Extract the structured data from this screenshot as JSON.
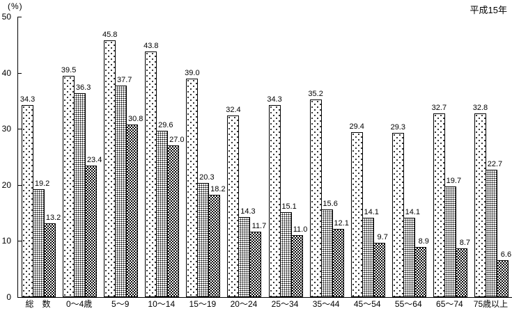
{
  "chart_data": {
    "type": "bar",
    "title": "",
    "annotation": "平成15年",
    "ylabel": "(%)",
    "xlabel": "",
    "ylim": [
      0,
      50
    ],
    "yticks": [
      0,
      10,
      20,
      30,
      40,
      50
    ],
    "grid": false,
    "legend_position": "none",
    "bar_patterns_note": [
      "sparse-dots",
      "dense-dots",
      "dark-checker"
    ],
    "categories": [
      "総　数",
      "0〜4歳",
      "5〜9",
      "10〜14",
      "15〜19",
      "20〜24",
      "25〜34",
      "35〜44",
      "45〜54",
      "55〜64",
      "65〜74",
      "75歳以上"
    ],
    "series": [
      {
        "name": "series-1",
        "pattern": "sparse-dots",
        "values": [
          34.3,
          39.5,
          45.8,
          43.8,
          39.0,
          32.4,
          34.3,
          35.2,
          29.4,
          29.3,
          32.7,
          32.8
        ]
      },
      {
        "name": "series-2",
        "pattern": "dense-dots",
        "values": [
          19.2,
          36.3,
          37.7,
          29.6,
          20.3,
          14.3,
          15.1,
          15.6,
          14.1,
          14.1,
          19.7,
          22.7
        ]
      },
      {
        "name": "series-3",
        "pattern": "checker",
        "values": [
          13.2,
          23.4,
          30.8,
          27.0,
          18.2,
          11.7,
          11.0,
          12.1,
          9.7,
          8.9,
          8.7,
          6.6
        ]
      }
    ]
  }
}
